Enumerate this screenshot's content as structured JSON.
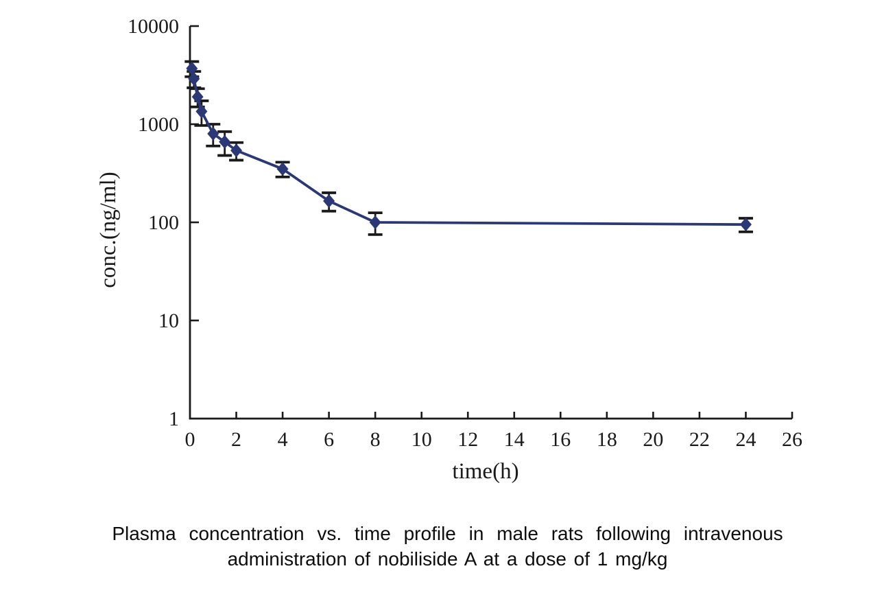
{
  "figure": {
    "caption_line1": "Plasma concentration vs. time profile in male rats following intravenous",
    "caption_line2": "administration of nobiliside A at a dose of 1 mg/kg"
  },
  "chart_data": {
    "type": "line",
    "title": "",
    "xlabel": "time(h)",
    "ylabel": "conc.(ng/ml)",
    "x_scale": "linear",
    "y_scale": "log",
    "xlim": [
      0,
      26
    ],
    "ylim": [
      1,
      10000
    ],
    "x_ticks": [
      0,
      2,
      4,
      6,
      8,
      10,
      12,
      14,
      16,
      18,
      20,
      22,
      24,
      26
    ],
    "y_ticks": [
      1,
      10,
      100,
      1000,
      10000
    ],
    "grid": false,
    "legend": false,
    "axis_color": "#1a1a1a",
    "tick_label_color": "#1a1a1a",
    "series": [
      {
        "marker": "diamond",
        "color": "#2b3876",
        "error_bar_color": "#1a1a1a",
        "x": [
          0.083,
          0.17,
          0.33,
          0.5,
          1,
          1.5,
          2,
          4,
          6,
          8,
          24
        ],
        "y": [
          3700,
          2900,
          1900,
          1350,
          800,
          660,
          540,
          350,
          165,
          100,
          95
        ],
        "y_err": [
          650,
          550,
          400,
          380,
          200,
          180,
          110,
          60,
          35,
          25,
          15
        ]
      }
    ]
  }
}
